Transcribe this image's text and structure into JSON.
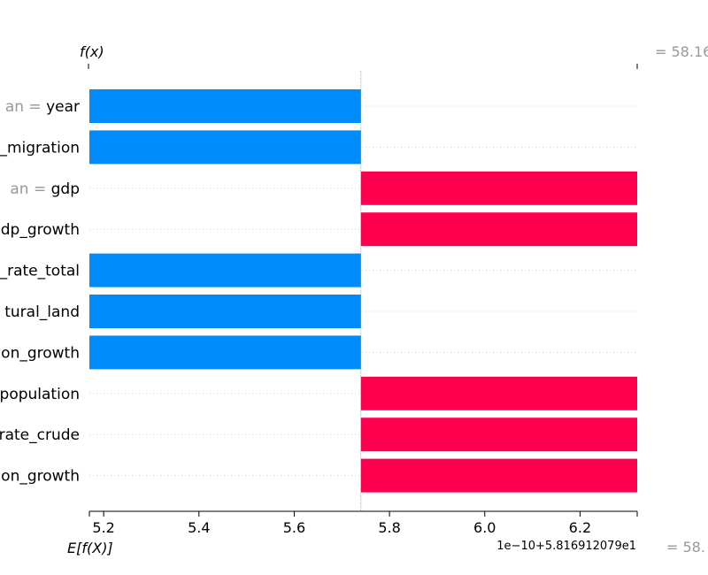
{
  "chart_data": {
    "type": "bar",
    "subtype": "shap-decision-waterfall",
    "features": [
      {
        "name": "year",
        "prefix": "an = ",
        "value": -2.8e-11,
        "sign": "negative"
      },
      {
        "name": "_migration",
        "prefix": "",
        "value": -2.8e-11,
        "sign": "negative"
      },
      {
        "name": "gdp",
        "prefix": "an = ",
        "value": 2.8e-11,
        "sign": "positive"
      },
      {
        "name": "dp_growth",
        "prefix": "",
        "value": 2.8e-11,
        "sign": "positive"
      },
      {
        "name": "_rate_total",
        "prefix": "",
        "value": -2.8e-11,
        "sign": "negative"
      },
      {
        "name": "tural_land",
        "prefix": "",
        "value": -2.8e-11,
        "sign": "negative"
      },
      {
        "name": "on_growth",
        "prefix": "",
        "value": -2.8e-11,
        "sign": "negative"
      },
      {
        "name": "population",
        "prefix": "",
        "value": 2.8e-11,
        "sign": "positive"
      },
      {
        "name": "rate_crude",
        "prefix": "",
        "value": 2.8e-11,
        "sign": "positive"
      },
      {
        "name": "on_growth",
        "prefix": "",
        "value": 2.8e-11,
        "sign": "positive"
      }
    ],
    "base_value": 5.74,
    "bar_ends": [
      5.17,
      5.17,
      6.32,
      6.32,
      5.17,
      5.17,
      5.17,
      6.32,
      6.32,
      6.32
    ],
    "xlim": [
      5.17,
      6.32
    ],
    "xticks": [
      5.2,
      5.4,
      5.6,
      5.8,
      6.0,
      6.2
    ],
    "xtick_labels": [
      "5.2",
      "5.4",
      "5.6",
      "5.8",
      "6.0",
      "6.2"
    ],
    "offset_label": "1e−10+5.816912079e1",
    "fx_label": "f(x)",
    "efx_label": "E[f(X)]",
    "fx_value_text": "= 58.16",
    "efx_value_text": "= 58.",
    "colors": {
      "positive": "#ff0051",
      "negative": "#008bfb",
      "gray": "#999999",
      "grid": "#cccccc",
      "axis": "#000000"
    }
  }
}
